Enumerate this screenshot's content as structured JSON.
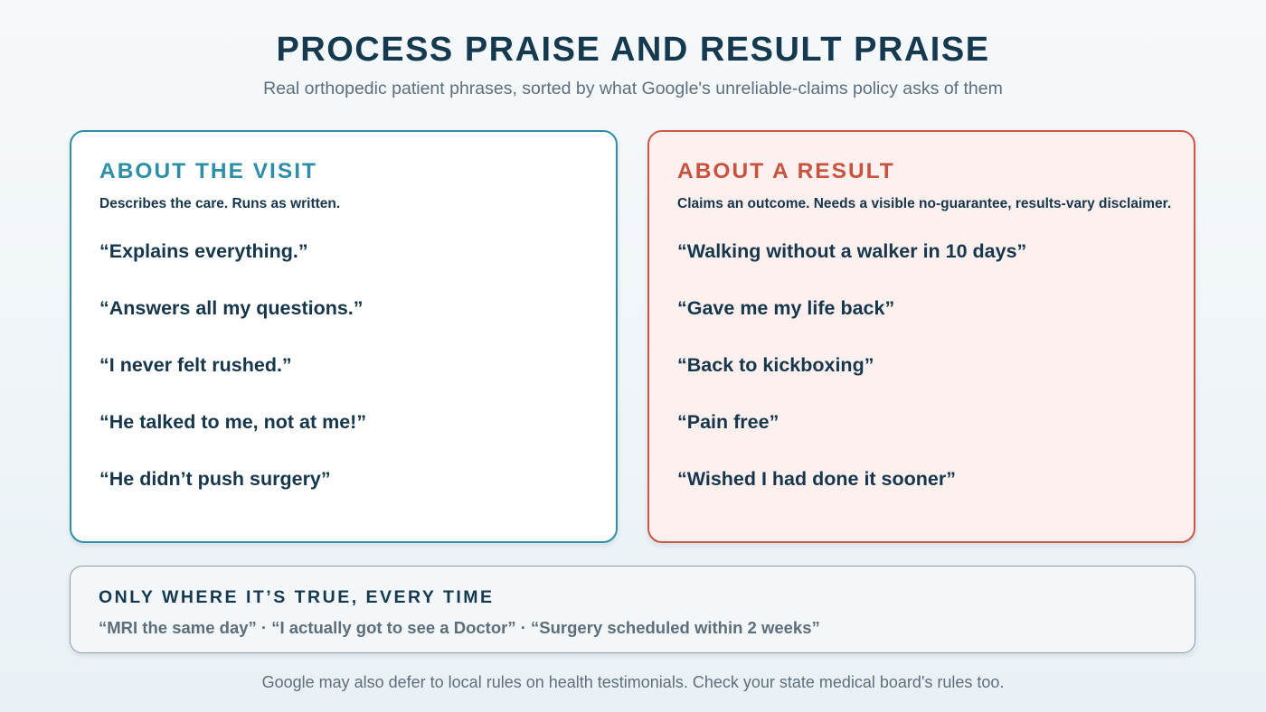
{
  "title": "PROCESS PRAISE AND RESULT PRAISE",
  "subtitle": "Real orthopedic patient phrases, sorted by what Google's unreliable-claims policy asks of them",
  "visit": {
    "heading": "ABOUT THE VISIT",
    "description": "Describes the care. Runs as written.",
    "phrases": [
      "“Explains everything.”",
      "“Answers all my questions.”",
      "“I never felt rushed.”",
      "“He talked to me, not at me!”",
      "“He didn’t push surgery”"
    ]
  },
  "result": {
    "heading": "ABOUT A RESULT",
    "description": "Claims an outcome. Needs a visible no-guarantee, results-vary disclaimer.",
    "phrases": [
      "“Walking without a walker in 10 days”",
      "“Gave me my life back”",
      "“Back to kickboxing”",
      "“Pain free”",
      "“Wished I had done it sooner”"
    ]
  },
  "conditional": {
    "heading": "ONLY WHERE IT’S TRUE, EVERY TIME",
    "phrases": "“MRI the same day” · “I actually got to see a Doctor” · “Surgery scheduled within 2 weeks”"
  },
  "footer": "Google may also defer to local rules on health testimonials. Check your state medical board's rules too.",
  "colors": {
    "visit_accent": "#2f8ea7",
    "result_accent": "#cc5746",
    "result_background": "#fdf0ee",
    "text_dark": "#16364b",
    "text_muted": "#5e6f7b"
  }
}
